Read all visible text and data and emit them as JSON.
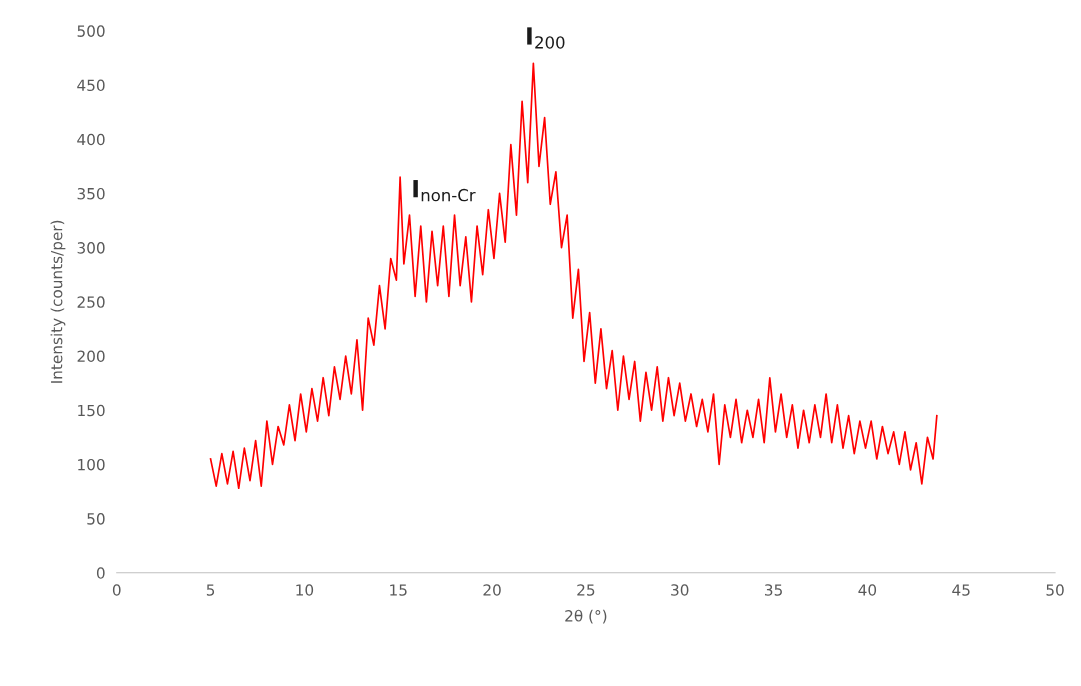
{
  "chart_data": {
    "type": "line",
    "xlabel": "2θ (°)",
    "ylabel": "Intensity (counts/per)",
    "xlim": [
      0,
      50
    ],
    "xticks": [
      0,
      5,
      10,
      15,
      20,
      25,
      30,
      35,
      40,
      45,
      50
    ],
    "ylim": [
      0,
      500
    ],
    "yticks": [
      0,
      50,
      100,
      150,
      200,
      250,
      300,
      350,
      400,
      450,
      500
    ],
    "grid": false,
    "legend": false,
    "marker": "none",
    "line_style": "solid",
    "annotations": [
      {
        "text": "I$_{non-Cr}$",
        "x": 15.1,
        "y": 365
      },
      {
        "text": "I$_{200}$",
        "x": 22.2,
        "y": 470
      }
    ],
    "series": [
      {
        "color": "#ff0000",
        "x": [
          5.0,
          5.3,
          5.6,
          5.9,
          6.2,
          6.5,
          6.8,
          7.1,
          7.4,
          7.7,
          8.0,
          8.3,
          8.6,
          8.9,
          9.2,
          9.5,
          9.8,
          10.1,
          10.4,
          10.7,
          11.0,
          11.3,
          11.6,
          11.9,
          12.2,
          12.5,
          12.8,
          13.1,
          13.4,
          13.7,
          14.0,
          14.3,
          14.6,
          14.9,
          15.1,
          15.3,
          15.6,
          15.9,
          16.2,
          16.5,
          16.8,
          17.1,
          17.4,
          17.7,
          18.0,
          18.3,
          18.6,
          18.9,
          19.2,
          19.5,
          19.8,
          20.1,
          20.4,
          20.7,
          21.0,
          21.3,
          21.6,
          21.9,
          22.2,
          22.5,
          22.8,
          23.1,
          23.4,
          23.7,
          24.0,
          24.3,
          24.6,
          24.9,
          25.2,
          25.5,
          25.8,
          26.1,
          26.4,
          26.7,
          27.0,
          27.3,
          27.6,
          27.9,
          28.2,
          28.5,
          28.8,
          29.1,
          29.4,
          29.7,
          30.0,
          30.3,
          30.6,
          30.9,
          31.2,
          31.5,
          31.8,
          32.1,
          32.4,
          32.7,
          33.0,
          33.3,
          33.6,
          33.9,
          34.2,
          34.5,
          34.8,
          35.1,
          35.4,
          35.7,
          36.0,
          36.3,
          36.6,
          36.9,
          37.2,
          37.5,
          37.8,
          38.1,
          38.4,
          38.7,
          39.0,
          39.3,
          39.6,
          39.9,
          40.2,
          40.5,
          40.8,
          41.1,
          41.4,
          41.7,
          42.0,
          42.3,
          42.6,
          42.9,
          43.2,
          43.5,
          43.7
        ],
        "values": [
          105,
          80,
          110,
          82,
          112,
          78,
          115,
          85,
          122,
          80,
          140,
          100,
          135,
          118,
          155,
          122,
          165,
          130,
          170,
          140,
          180,
          145,
          190,
          160,
          200,
          165,
          215,
          150,
          235,
          210,
          265,
          225,
          290,
          270,
          365,
          285,
          330,
          255,
          320,
          250,
          315,
          265,
          320,
          255,
          330,
          265,
          310,
          250,
          320,
          275,
          335,
          290,
          350,
          305,
          395,
          330,
          435,
          360,
          470,
          375,
          420,
          340,
          370,
          300,
          330,
          235,
          280,
          195,
          240,
          175,
          225,
          170,
          205,
          150,
          200,
          160,
          195,
          140,
          185,
          150,
          190,
          140,
          180,
          145,
          175,
          140,
          165,
          135,
          160,
          130,
          165,
          100,
          155,
          125,
          160,
          120,
          150,
          125,
          160,
          120,
          180,
          130,
          165,
          125,
          155,
          115,
          150,
          120,
          155,
          125,
          165,
          120,
          155,
          115,
          145,
          110,
          140,
          115,
          140,
          105,
          135,
          110,
          130,
          100,
          130,
          95,
          120,
          82,
          125,
          105,
          145
        ]
      }
    ]
  }
}
